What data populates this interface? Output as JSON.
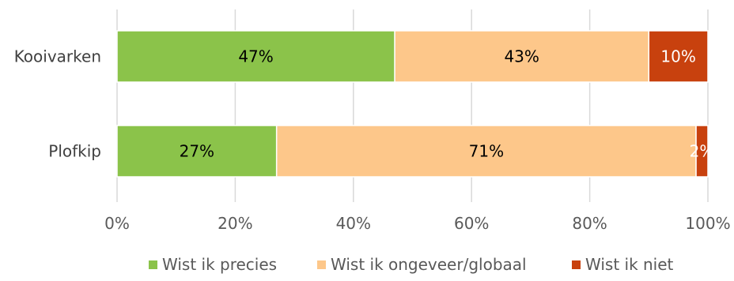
{
  "chart_data": {
    "type": "bar",
    "orientation": "horizontal",
    "stacked": true,
    "percent": true,
    "categories": [
      "Kooivarken",
      "Plofkip"
    ],
    "series": [
      {
        "name": "Wist ik precies",
        "values": [
          47,
          27
        ],
        "labels": [
          "47%",
          "27%"
        ],
        "color": "#8BC34A",
        "label_color": "#000000"
      },
      {
        "name": "Wist ik ongeveer/globaal",
        "values": [
          43,
          71
        ],
        "labels": [
          "43%",
          "71%"
        ],
        "color": "#FDC78A",
        "label_color": "#000000"
      },
      {
        "name": "Wist ik niet",
        "values": [
          10,
          2
        ],
        "labels": [
          "10%",
          "2%"
        ],
        "color": "#C8410E",
        "label_color": "#ffffff"
      }
    ],
    "x_ticks": [
      "0%",
      "20%",
      "40%",
      "60%",
      "80%",
      "100%"
    ],
    "xlim": [
      0,
      100
    ],
    "grid": true,
    "legend_position": "bottom"
  }
}
